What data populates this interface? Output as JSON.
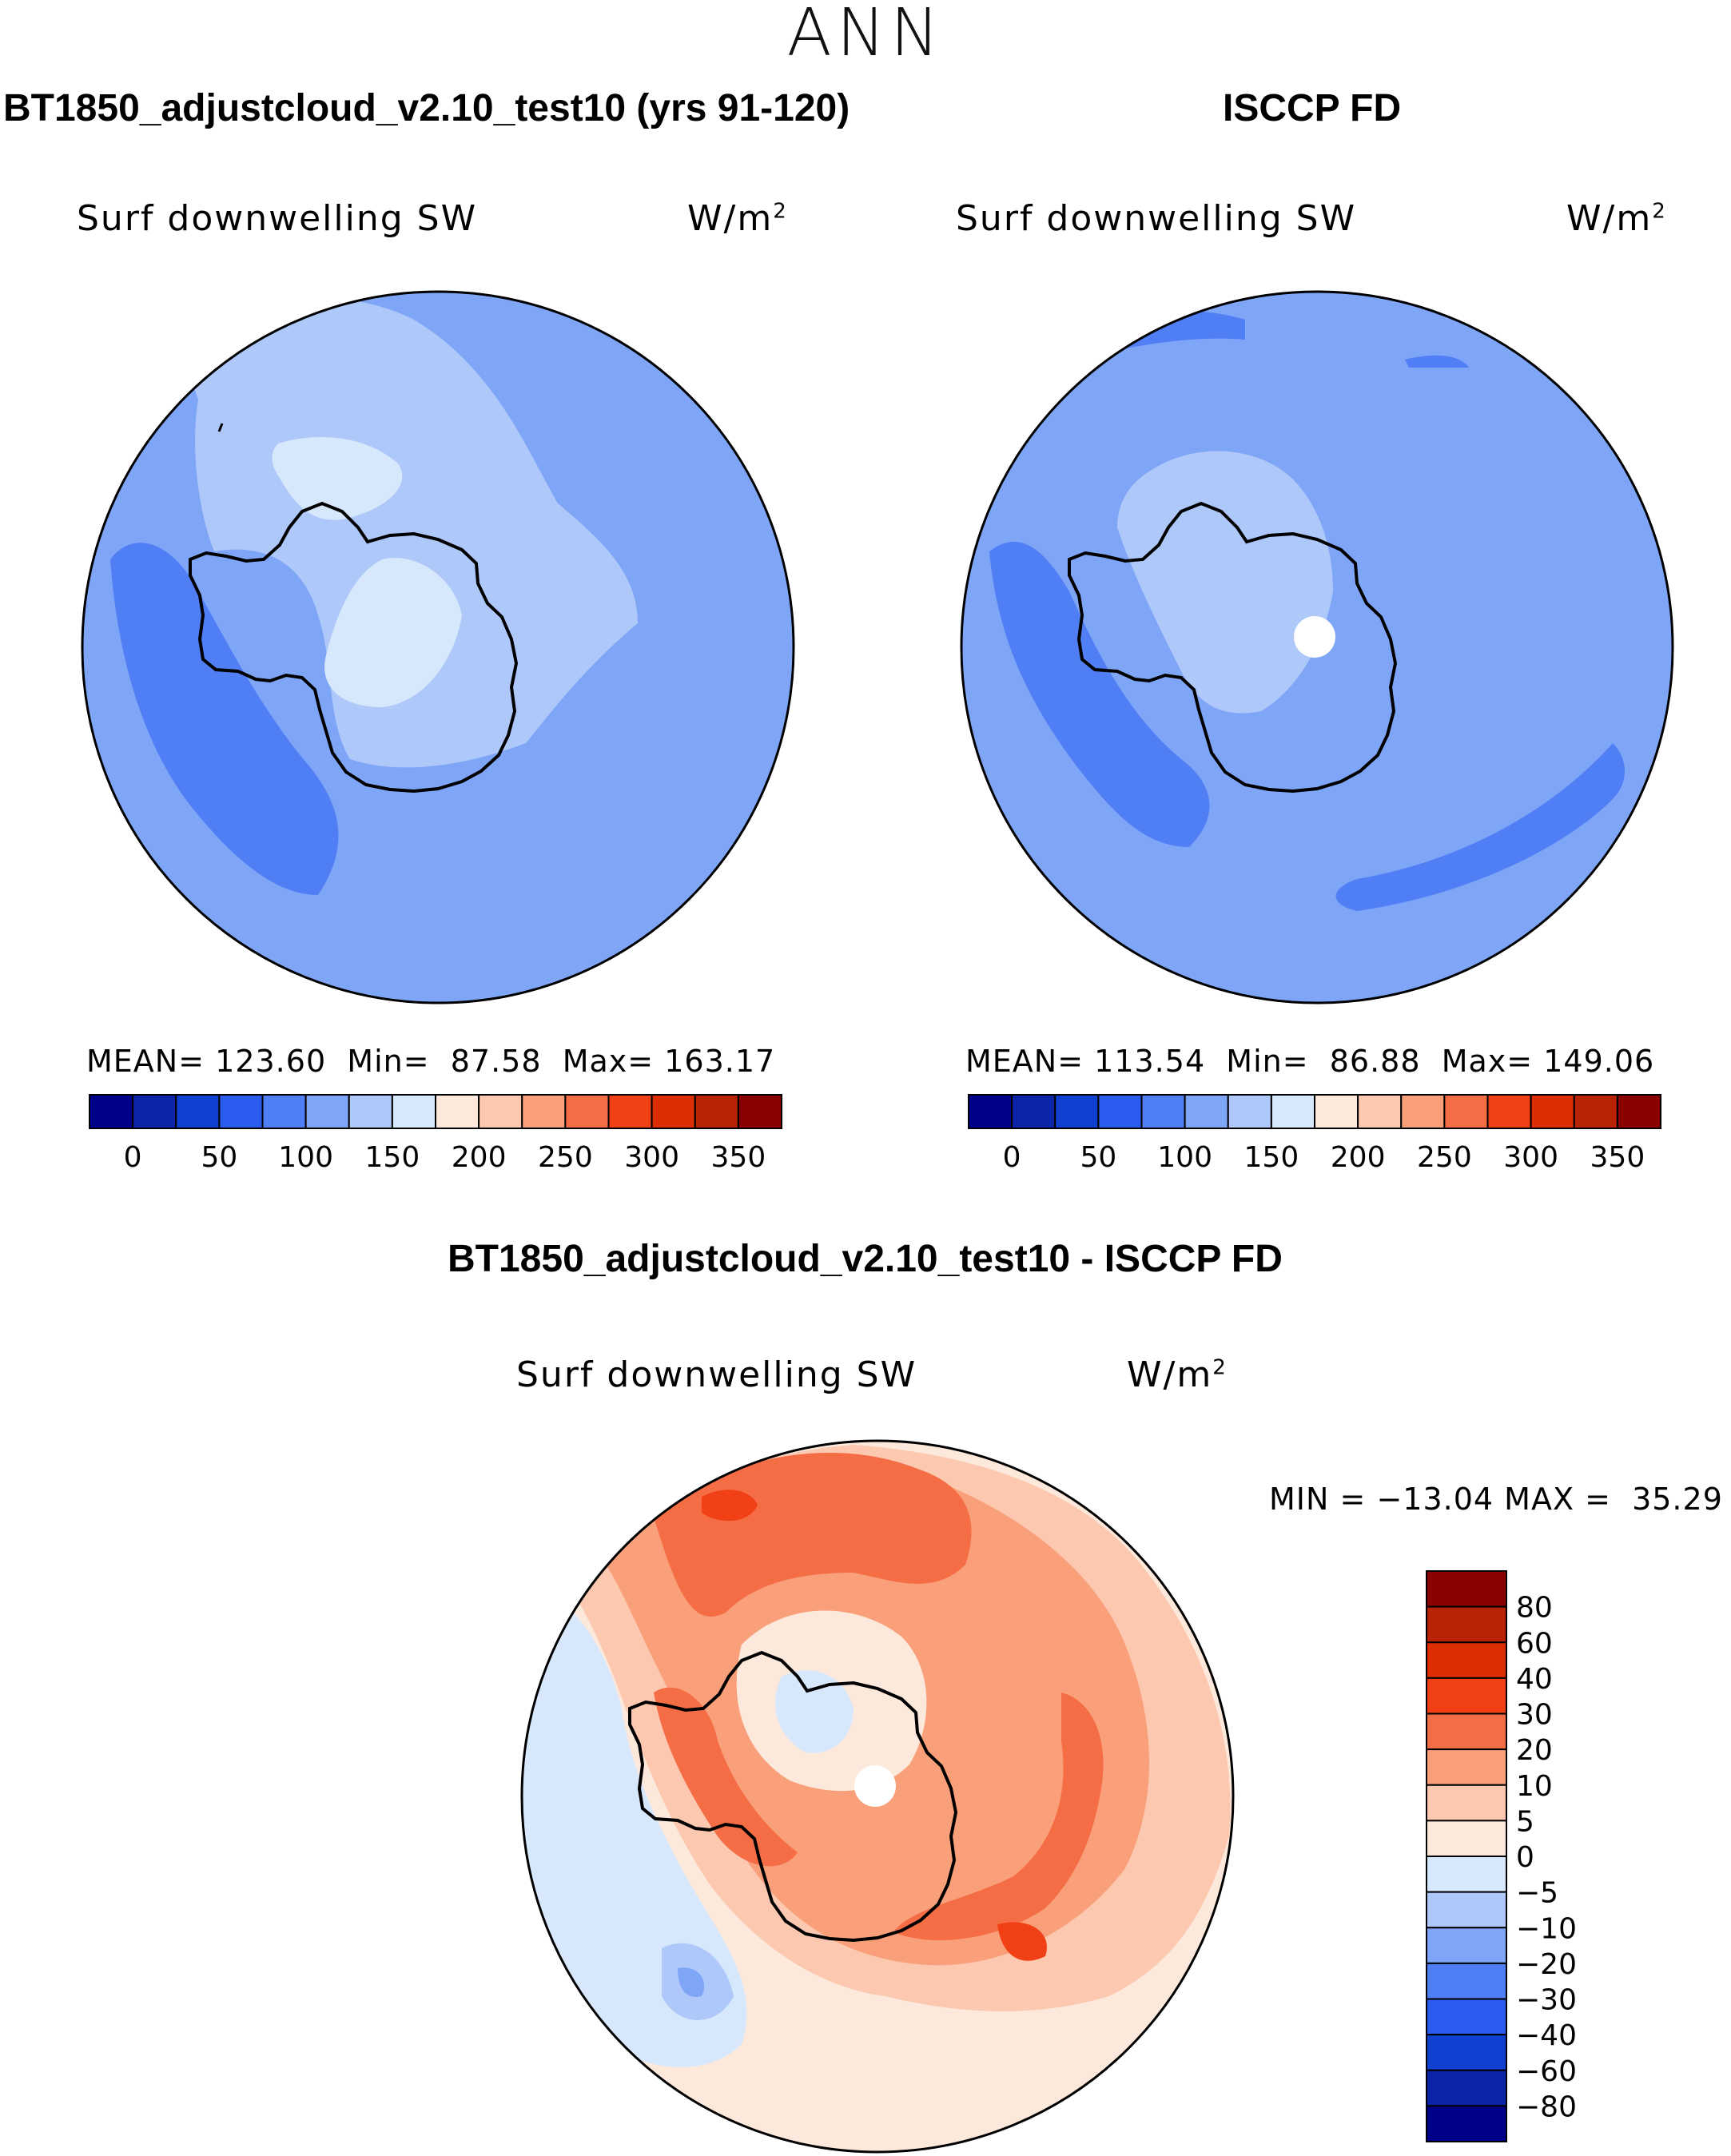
{
  "figure": {
    "season": "ANN",
    "panels": [
      {
        "id": "model",
        "title": "BT1850_adjustcloud_v2.10_test10 (yrs 91-120)",
        "variable": "Surf downwelling SW",
        "units_base": "W/m",
        "units_exp": "2",
        "stats": {
          "mean_label": "MEAN=",
          "mean": "123.60",
          "min_label": "Min=",
          "min": "87.58",
          "max_label": "Max=",
          "max": "163.17"
        }
      },
      {
        "id": "obs",
        "title": "ISCCP FD",
        "variable": "Surf downwelling SW",
        "units_base": "W/m",
        "units_exp": "2",
        "stats": {
          "mean_label": "MEAN=",
          "mean": "113.54",
          "min_label": "Min=",
          "min": "86.88",
          "max_label": "Max=",
          "max": "149.06"
        }
      },
      {
        "id": "diff",
        "title": "BT1850_adjustcloud_v2.10_test10 - ISCCP FD",
        "variable": "Surf downwelling SW",
        "units_base": "W/m",
        "units_exp": "2",
        "stats": {
          "min_label": "MIN =",
          "min": "−13.04",
          "max_label": "MAX =",
          "max": "35.29"
        }
      }
    ]
  },
  "colorbar_abs": {
    "colors": [
      "#00008b",
      "#0b24a8",
      "#1040d0",
      "#2a5cf0",
      "#4f7ef5",
      "#7fa5f7",
      "#aec8fa",
      "#d8e8fc",
      "#fde9dc",
      "#fcc9b0",
      "#f9a07b",
      "#f56d45",
      "#f24016",
      "#dc2d03",
      "#b82205",
      "#8b0000"
    ],
    "tick_labels": [
      "0",
      "50",
      "100",
      "150",
      "200",
      "250",
      "300",
      "350"
    ],
    "tick_boundaries": [
      1,
      3,
      5,
      7,
      9,
      11,
      13,
      15
    ]
  },
  "colorbar_diff": {
    "colors": [
      "#8b0000",
      "#b82205",
      "#dc2d03",
      "#f24016",
      "#f56d45",
      "#f9a07b",
      "#fcc9b0",
      "#fde9dc",
      "#d8e8fc",
      "#aec8fa",
      "#7fa5f7",
      "#4f7ef5",
      "#2a5cf0",
      "#1040d0",
      "#0b24a8",
      "#00008b"
    ],
    "tick_labels": [
      "80",
      "60",
      "40",
      "30",
      "20",
      "10",
      "5",
      "0",
      "−5",
      "−10",
      "−20",
      "−30",
      "−40",
      "−60",
      "−80"
    ]
  },
  "map_colors": {
    "model": {
      "bg": "#7fa5f7",
      "dark": "#4f7ef5",
      "light": "#aec8fa",
      "lightest": "#d8e8fc"
    },
    "obs": {
      "bg": "#7fa5f7",
      "dark": "#4f7ef5",
      "light": "#aec8fa",
      "hole": "#ffffff"
    },
    "diff": {
      "pale": "#fde9dc",
      "light_orange": "#fcc9b0",
      "orange": "#f9a07b",
      "deep_orange": "#f56d45",
      "red": "#f24016",
      "pale_blue": "#d8e8fc",
      "blue": "#aec8fa",
      "mid_blue": "#7fa5f7"
    }
  }
}
